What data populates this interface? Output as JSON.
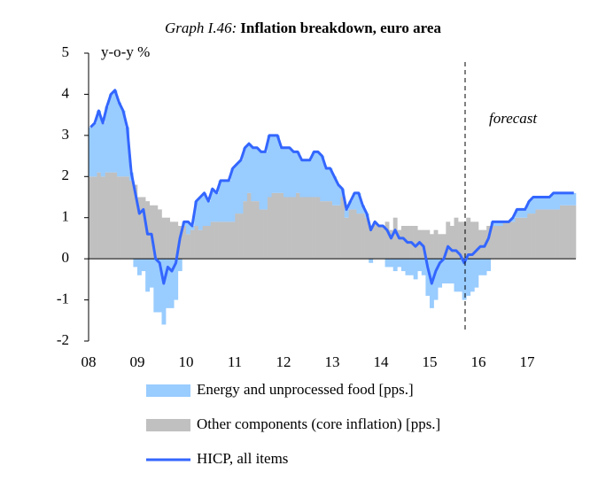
{
  "chart_data": {
    "type": "bar",
    "title_prefix": "Graph I.46:",
    "title": "Inflation breakdown, euro area",
    "y_label": "y-o-y %",
    "annotation": "forecast",
    "categories": [
      "08",
      null,
      null,
      null,
      null,
      null,
      null,
      null,
      null,
      null,
      null,
      null,
      "09",
      null,
      null,
      null,
      null,
      null,
      null,
      null,
      null,
      null,
      null,
      null,
      "10",
      null,
      null,
      null,
      null,
      null,
      null,
      null,
      null,
      null,
      null,
      null,
      "11",
      null,
      null,
      null,
      null,
      null,
      null,
      null,
      null,
      null,
      null,
      null,
      "12",
      null,
      null,
      null,
      null,
      null,
      null,
      null,
      null,
      null,
      null,
      null,
      "13",
      null,
      null,
      null,
      null,
      null,
      null,
      null,
      null,
      null,
      null,
      null,
      "14",
      null,
      null,
      null,
      null,
      null,
      null,
      null,
      null,
      null,
      null,
      null,
      "15",
      null,
      null,
      null,
      null,
      null,
      null,
      null,
      null,
      null,
      null,
      null,
      "16",
      null,
      null,
      null,
      null,
      null,
      null,
      null,
      null,
      null,
      null,
      null,
      "17",
      null,
      null,
      null,
      null,
      null,
      null,
      null,
      null,
      null,
      null,
      null
    ],
    "series": [
      {
        "name": "Other components (core inflation) [pps.]",
        "type": "bar",
        "color": "#c0c0c0",
        "values": [
          2.0,
          2.0,
          2.1,
          2.0,
          2.1,
          2.1,
          2.1,
          2.0,
          2.0,
          2.0,
          1.9,
          1.8,
          1.5,
          1.5,
          1.4,
          1.3,
          1.3,
          1.2,
          1.0,
          1.0,
          0.9,
          0.9,
          0.8,
          0.8,
          0.6,
          0.7,
          0.8,
          0.7,
          0.8,
          0.8,
          0.9,
          0.9,
          0.9,
          0.9,
          0.9,
          0.9,
          1.1,
          1.1,
          1.4,
          1.6,
          1.4,
          1.4,
          1.2,
          1.2,
          1.5,
          1.6,
          1.6,
          1.6,
          1.5,
          1.5,
          1.5,
          1.6,
          1.5,
          1.5,
          1.5,
          1.5,
          1.5,
          1.4,
          1.4,
          1.4,
          1.3,
          1.3,
          1.5,
          1.0,
          1.2,
          1.2,
          1.1,
          1.1,
          1.0,
          0.8,
          0.9,
          0.8,
          0.8,
          0.9,
          0.7,
          1.0,
          0.7,
          0.8,
          0.8,
          0.8,
          0.8,
          0.7,
          0.7,
          0.7,
          0.6,
          0.7,
          0.6,
          0.6,
          0.9,
          0.8,
          1.0,
          0.9,
          0.9,
          1.0,
          0.9,
          0.9,
          0.7,
          0.7,
          0.8,
          0.8,
          0.8,
          0.8,
          0.9,
          0.9,
          0.9,
          1.0,
          1.0,
          1.0,
          1.1,
          1.1,
          1.2,
          1.2,
          1.2,
          1.2,
          1.2,
          1.2,
          1.3,
          1.3,
          1.3,
          1.3
        ]
      },
      {
        "name": "Energy and unprocessed food [pps.]",
        "type": "bar",
        "color": "#99ccff",
        "values": [
          1.2,
          1.3,
          1.5,
          1.3,
          1.6,
          1.9,
          2.0,
          1.8,
          1.6,
          1.2,
          0.2,
          -0.2,
          -0.4,
          -0.3,
          -0.8,
          -0.7,
          -1.3,
          -1.3,
          -1.6,
          -1.2,
          -1.2,
          -1.0,
          -0.3,
          0.1,
          0.3,
          0.1,
          0.6,
          0.8,
          0.8,
          0.6,
          0.8,
          0.7,
          1.0,
          1.0,
          1.0,
          1.3,
          1.2,
          1.3,
          1.3,
          1.2,
          1.3,
          1.3,
          1.4,
          1.4,
          1.5,
          1.4,
          1.4,
          1.1,
          1.2,
          1.2,
          1.1,
          1.0,
          0.9,
          0.9,
          0.9,
          1.1,
          1.1,
          1.1,
          0.8,
          0.8,
          0.7,
          0.5,
          0.2,
          0.2,
          0.2,
          0.4,
          0.5,
          0.2,
          0.1,
          -0.1,
          0.0,
          0.0,
          0.0,
          -0.2,
          -0.2,
          -0.3,
          -0.2,
          -0.3,
          -0.4,
          -0.4,
          -0.5,
          -0.3,
          -0.4,
          -0.9,
          -1.2,
          -1.0,
          -0.7,
          -0.6,
          -0.6,
          -0.6,
          -0.8,
          -0.8,
          -1.0,
          -0.9,
          -0.8,
          -0.7,
          -0.4,
          -0.4,
          -0.3,
          0.1,
          0.1,
          0.1,
          0.0,
          0.0,
          0.1,
          0.2,
          0.2,
          0.2,
          0.3,
          0.4,
          0.3,
          0.3,
          0.3,
          0.3,
          0.4,
          0.4,
          0.3,
          0.3,
          0.3,
          0.3
        ]
      },
      {
        "name": "HICP, all items",
        "type": "line",
        "color": "#3366ff",
        "values": [
          3.2,
          3.3,
          3.6,
          3.3,
          3.7,
          4.0,
          4.1,
          3.8,
          3.6,
          3.2,
          2.1,
          1.6,
          1.1,
          1.2,
          0.6,
          0.6,
          0.0,
          -0.1,
          -0.6,
          -0.2,
          -0.3,
          -0.1,
          0.5,
          0.9,
          0.9,
          0.8,
          1.4,
          1.5,
          1.6,
          1.4,
          1.7,
          1.6,
          1.9,
          1.9,
          1.9,
          2.2,
          2.3,
          2.4,
          2.7,
          2.8,
          2.7,
          2.7,
          2.6,
          2.6,
          3.0,
          3.0,
          3.0,
          2.7,
          2.7,
          2.7,
          2.6,
          2.6,
          2.4,
          2.4,
          2.4,
          2.6,
          2.6,
          2.5,
          2.2,
          2.2,
          2.0,
          1.8,
          1.7,
          1.2,
          1.4,
          1.6,
          1.6,
          1.3,
          1.1,
          0.7,
          0.9,
          0.8,
          0.8,
          0.7,
          0.5,
          0.7,
          0.5,
          0.5,
          0.4,
          0.4,
          0.3,
          0.4,
          0.3,
          -0.2,
          -0.6,
          -0.3,
          -0.1,
          0.0,
          0.3,
          0.2,
          0.2,
          0.1,
          -0.1,
          0.1,
          0.1,
          0.2,
          0.3,
          0.3,
          0.5,
          0.9,
          0.9,
          0.9,
          0.9,
          0.9,
          1.0,
          1.2,
          1.2,
          1.2,
          1.4,
          1.5,
          1.5,
          1.5,
          1.5,
          1.5,
          1.6,
          1.6,
          1.6,
          1.6,
          1.6,
          1.6
        ]
      }
    ],
    "ylim": [
      -2,
      5
    ],
    "yticks": [
      5,
      4,
      3,
      2,
      1,
      0,
      -1,
      -2
    ]
  }
}
